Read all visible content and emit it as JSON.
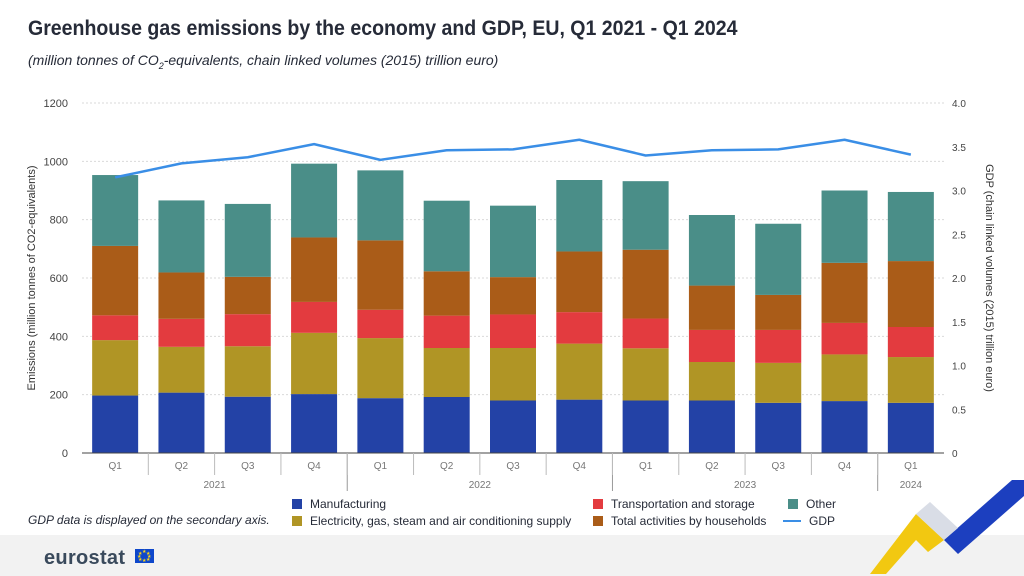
{
  "header": {
    "title": "Greenhouse gas emissions by the economy and GDP, EU, Q1 2021 - Q1 2024",
    "subtitle_pre": "(million tonnes of CO",
    "subtitle_sub": "2",
    "subtitle_post": "-equivalents, chain linked volumes (2015) trillion euro)"
  },
  "note": "GDP data is displayed on the secondary axis.",
  "footer": {
    "logo_text": "eurostat"
  },
  "colors": {
    "manufacturing": "#2342a6",
    "electricity": "#b09525",
    "transport": "#e33b3f",
    "households": "#aa5c18",
    "other": "#4a8e88",
    "gdp": "#3a8ee6"
  },
  "legend": [
    {
      "key": "manufacturing",
      "label": "Manufacturing"
    },
    {
      "key": "electricity",
      "label": "Electricity, gas, steam and air conditioning supply"
    },
    {
      "key": "transport",
      "label": "Transportation and storage"
    },
    {
      "key": "households",
      "label": "Total activities by households"
    },
    {
      "key": "other",
      "label": "Other"
    },
    {
      "key": "gdp",
      "label": "GDP"
    }
  ],
  "chart_data": {
    "type": "bar",
    "stacked": true,
    "title": "Greenhouse gas emissions by the economy and GDP, EU, Q1 2021 - Q1 2024",
    "categories": [
      "Q1",
      "Q2",
      "Q3",
      "Q4",
      "Q1",
      "Q2",
      "Q3",
      "Q4",
      "Q1",
      "Q2",
      "Q3",
      "Q4",
      "Q1"
    ],
    "year_groups": [
      {
        "label": "2021",
        "start": 0,
        "end": 3
      },
      {
        "label": "2022",
        "start": 4,
        "end": 7
      },
      {
        "label": "2023",
        "start": 8,
        "end": 11
      },
      {
        "label": "2024",
        "start": 12,
        "end": 12
      }
    ],
    "ylabel": "Emissions (million tonnes of CO2-equivalents)",
    "y2label": "GDP (chain linked volumes (2015) trillion euro)",
    "ylim": [
      0,
      1200
    ],
    "yticks": [
      "0",
      "200",
      "400",
      "600",
      "800",
      "1000",
      "1200"
    ],
    "y2lim": [
      0,
      4.0
    ],
    "y2ticks": [
      "0",
      "0.5",
      "1.0",
      "1.5",
      "2.0",
      "2.5",
      "3.0",
      "3.5",
      "4.0"
    ],
    "series": [
      {
        "name": "Manufacturing",
        "key": "manufacturing",
        "values": [
          197,
          207,
          193,
          202,
          188,
          192,
          180,
          183,
          180,
          180,
          172,
          178,
          172
        ]
      },
      {
        "name": "Electricity, gas, steam and air conditioning supply",
        "key": "electricity",
        "values": [
          190,
          157,
          173,
          210,
          206,
          168,
          180,
          192,
          179,
          132,
          137,
          160,
          157
        ]
      },
      {
        "name": "Transportation and storage",
        "key": "transport",
        "values": [
          85,
          96,
          110,
          106,
          97,
          111,
          115,
          108,
          102,
          110,
          113,
          108,
          103
        ]
      },
      {
        "name": "Total activities by households",
        "key": "households",
        "values": [
          238,
          159,
          128,
          221,
          238,
          152,
          128,
          208,
          236,
          152,
          120,
          206,
          226
        ]
      },
      {
        "name": "Other",
        "key": "other",
        "values": [
          243,
          247,
          250,
          253,
          240,
          242,
          245,
          245,
          235,
          242,
          244,
          248,
          237
        ]
      }
    ],
    "line_series": {
      "name": "GDP",
      "key": "gdp",
      "axis": "secondary",
      "values": [
        3.15,
        3.31,
        3.38,
        3.53,
        3.35,
        3.46,
        3.47,
        3.58,
        3.4,
        3.46,
        3.47,
        3.58,
        3.41
      ]
    }
  }
}
